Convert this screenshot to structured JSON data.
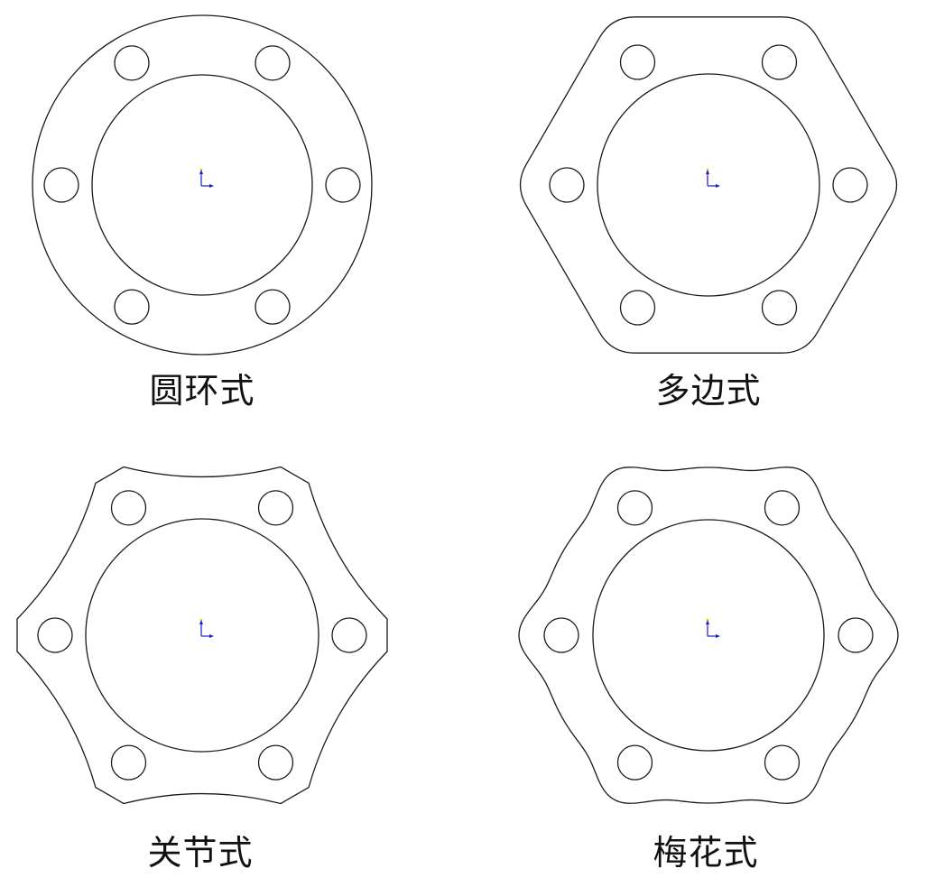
{
  "figures": [
    {
      "label": "圆环式",
      "outline": "circle",
      "bolt_hole_count": 6
    },
    {
      "label": "多边式",
      "outline": "rounded-hexagon",
      "bolt_hole_count": 6
    },
    {
      "label": "关节式",
      "outline": "concave-hexagon",
      "bolt_hole_count": 6
    },
    {
      "label": "梅花式",
      "outline": "lobed-flower",
      "bolt_hole_count": 6
    }
  ],
  "colors": {
    "outline": "#1a1a1a",
    "axis_marker": "#1a1ac8",
    "origin_dot": "#e8d200",
    "background": "#ffffff"
  }
}
